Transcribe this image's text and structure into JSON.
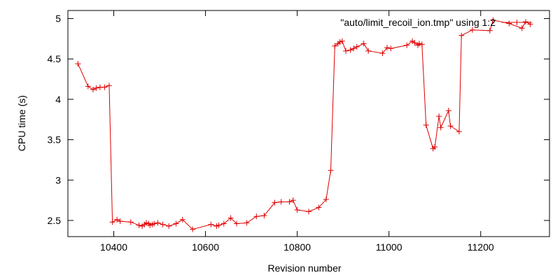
{
  "chart_data": {
    "type": "line",
    "xlabel": "Revision number",
    "ylabel": "CPU time (s)",
    "xlim": [
      10300,
      11350
    ],
    "ylim": [
      2.3,
      5.1
    ],
    "x_ticks": [
      10400,
      10600,
      10800,
      11000,
      11200
    ],
    "y_ticks": [
      2.5,
      3,
      3.5,
      4,
      4.5,
      5
    ],
    "y_tick_labels": [
      "2.5",
      "3",
      "3.5",
      "4",
      "4.5",
      "5"
    ],
    "grid": false,
    "legend_position": "top-right",
    "series": [
      {
        "name": "\"auto/limit_recoil_ion.tmp\" using 1:2",
        "color": "#dd0000",
        "marker": "plus",
        "x": [
          10322,
          10344,
          10355,
          10362,
          10370,
          10380,
          10390,
          10397,
          10407,
          10414,
          10437,
          10455,
          10462,
          10467,
          10471,
          10476,
          10479,
          10484,
          10488,
          10496,
          10507,
          10520,
          10536,
          10550,
          10572,
          10612,
          10624,
          10629,
          10640,
          10655,
          10668,
          10690,
          10711,
          10728,
          10751,
          10765,
          10783,
          10791,
          10800,
          10825,
          10847,
          10863,
          10873,
          10882,
          10889,
          10893,
          10898,
          10906,
          10916,
          10923,
          10930,
          10945,
          10955,
          10986,
          10996,
          11004,
          11039,
          11051,
          11056,
          11063,
          11066,
          11072,
          11081,
          11096,
          11100,
          11109,
          11113,
          11130,
          11134,
          11153,
          11158,
          11182,
          11220,
          11227,
          11262,
          11290,
          11298,
          11308
        ],
        "values": [
          4.44,
          4.16,
          4.12,
          4.14,
          4.15,
          4.15,
          4.17,
          2.48,
          2.51,
          2.49,
          2.48,
          2.44,
          2.43,
          2.45,
          2.47,
          2.46,
          2.44,
          2.45,
          2.46,
          2.47,
          2.45,
          2.43,
          2.46,
          2.51,
          2.39,
          2.45,
          2.43,
          2.44,
          2.46,
          2.53,
          2.46,
          2.47,
          2.55,
          2.56,
          2.72,
          2.73,
          2.73,
          2.75,
          2.63,
          2.61,
          2.66,
          2.76,
          3.12,
          4.66,
          4.69,
          4.71,
          4.72,
          4.6,
          4.61,
          4.63,
          4.65,
          4.69,
          4.6,
          4.57,
          4.64,
          4.63,
          4.67,
          4.72,
          4.7,
          4.67,
          4.69,
          4.68,
          3.68,
          3.39,
          3.41,
          3.79,
          3.65,
          3.86,
          3.67,
          3.6,
          4.79,
          4.86,
          4.85,
          4.98,
          4.94,
          4.88,
          4.96,
          4.93
        ]
      }
    ]
  }
}
